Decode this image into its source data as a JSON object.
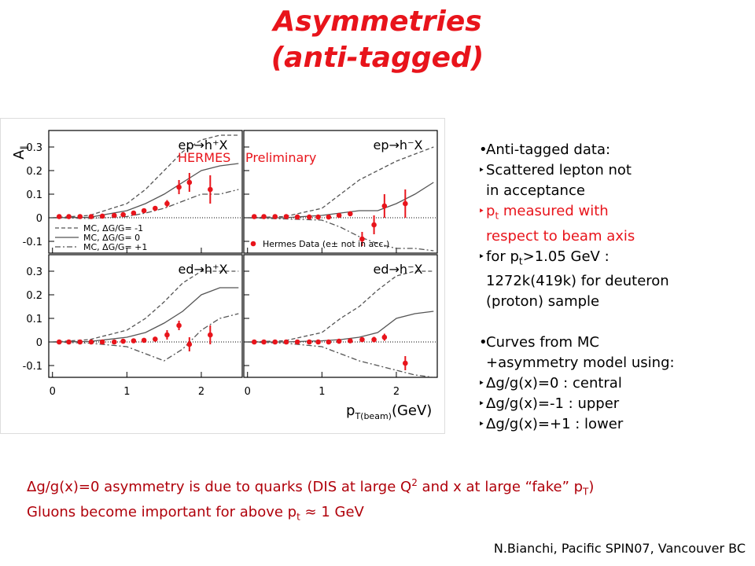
{
  "title": [
    "Asymmetries",
    "(anti-tagged)"
  ],
  "chart_data": {
    "type": "scatter",
    "ylabel": {
      "main": "A",
      "sub": "∥"
    },
    "xlabel": {
      "main": "p",
      "sub": "T(beam)",
      "unit": "(GeV)"
    },
    "xlim": [
      -0.05,
      2.55
    ],
    "ylim": [
      -0.15,
      0.37
    ],
    "xticks": [
      0,
      1,
      2
    ],
    "yticks": [
      -0.1,
      0,
      0.1,
      0.2,
      0.3
    ],
    "watermark": [
      "HERMES",
      "Preliminary"
    ],
    "point_color": "#e8141b",
    "curve_color": "#555555",
    "x": [
      0.09,
      0.22,
      0.37,
      0.52,
      0.67,
      0.83,
      0.95,
      1.09,
      1.23,
      1.38,
      1.54,
      1.7,
      1.84,
      2.12
    ],
    "curve_x": [
      0,
      0.5,
      1,
      1.25,
      1.5,
      1.75,
      2,
      2.25,
      2.5
    ],
    "curve_legend": [
      {
        "name": "MC, ΔG/G= -1",
        "dash": "5 3"
      },
      {
        "name": "MC, ΔG/G= 0",
        "dash": "none"
      },
      {
        "name": "MC, ΔG/G= +1",
        "dash": "7 3 2 3"
      }
    ],
    "data_legend": "Hermes Data (e± not in acc.)",
    "panels": [
      {
        "title": "ep→h⁺X",
        "values": [
          0.005,
          0.005,
          0.005,
          0.005,
          0.007,
          0.01,
          0.013,
          0.02,
          0.03,
          0.04,
          0.06,
          0.13,
          0.15,
          0.12
        ],
        "errors": [
          0.004,
          0.004,
          0.004,
          0.004,
          0.004,
          0.005,
          0.005,
          0.006,
          0.008,
          0.01,
          0.015,
          0.03,
          0.04,
          0.06
        ],
        "curves": [
          [
            0,
            0.01,
            0.06,
            0.12,
            0.2,
            0.28,
            0.33,
            0.35,
            0.35
          ],
          [
            0,
            0.002,
            0.03,
            0.06,
            0.1,
            0.15,
            0.2,
            0.22,
            0.23
          ],
          [
            0,
            -0.003,
            0.005,
            0.02,
            0.04,
            0.07,
            0.1,
            0.1,
            0.12
          ]
        ]
      },
      {
        "title": "ep→h⁻X",
        "values": [
          0.005,
          0.005,
          0.005,
          0.005,
          0.003,
          0.003,
          0.003,
          0.003,
          0.01,
          0.017,
          -0.09,
          -0.03,
          0.05,
          0.06
        ],
        "errors": [
          0.004,
          0.004,
          0.004,
          0.004,
          0.004,
          0.005,
          0.005,
          0.006,
          0.008,
          0.01,
          0.03,
          0.04,
          0.05,
          0.06
        ],
        "curves": [
          [
            0,
            0.005,
            0.04,
            0.1,
            0.16,
            0.2,
            0.24,
            0.27,
            0.3
          ],
          [
            0,
            0,
            0.01,
            0.02,
            0.03,
            0.03,
            0.06,
            0.1,
            0.15
          ],
          [
            0,
            -0.005,
            -0.01,
            -0.04,
            -0.08,
            -0.11,
            -0.13,
            -0.13,
            -0.14
          ]
        ]
      },
      {
        "title": "ed→h⁺X",
        "values": [
          0,
          0,
          0,
          0,
          0,
          0,
          0.003,
          0.005,
          0.007,
          0.012,
          0.03,
          0.07,
          -0.01,
          0.03
        ],
        "errors": [
          0.003,
          0.003,
          0.003,
          0.003,
          0.003,
          0.004,
          0.004,
          0.005,
          0.006,
          0.008,
          0.02,
          0.02,
          0.03,
          0.04
        ],
        "curves": [
          [
            0,
            0.01,
            0.05,
            0.1,
            0.17,
            0.25,
            0.3,
            0.3,
            0.3
          ],
          [
            0,
            0.002,
            0.02,
            0.04,
            0.08,
            0.13,
            0.2,
            0.23,
            0.23
          ],
          [
            0,
            -0.005,
            -0.02,
            -0.05,
            -0.08,
            -0.03,
            0.05,
            0.1,
            0.12
          ]
        ]
      },
      {
        "title": "ed→h⁻X",
        "values": [
          0,
          0,
          0,
          0,
          0,
          0,
          0,
          0,
          0.003,
          0.005,
          0.01,
          0.01,
          0.02,
          -0.09
        ],
        "errors": [
          0.003,
          0.003,
          0.003,
          0.003,
          0.003,
          0.004,
          0.004,
          0.005,
          0.006,
          0.008,
          0.01,
          0.012,
          0.015,
          0.03
        ],
        "curves": [
          [
            0,
            0.005,
            0.04,
            0.1,
            0.15,
            0.22,
            0.28,
            0.3,
            0.3
          ],
          [
            0,
            0,
            0.005,
            0.01,
            0.02,
            0.04,
            0.1,
            0.12,
            0.13
          ],
          [
            0,
            -0.005,
            -0.02,
            -0.05,
            -0.08,
            -0.1,
            -0.12,
            -0.14,
            -0.15
          ]
        ]
      }
    ]
  },
  "notes": [
    [
      "Anti-tagged data:"
    ],
    [
      "Scattered lepton not",
      "in acceptance"
    ],
    [
      [
        "p",
        "t",
        " measured with"
      ],
      "respect to beam axis"
    ],
    [
      [
        "for p",
        "t",
        ">1.05 GeV :"
      ],
      "1272k(419k) for deuteron",
      "(proton) sample"
    ],
    [
      "Curves from MC",
      "+asymmetry model using:"
    ],
    [
      "Δg/g(x)=0 : central"
    ],
    [
      "Δg/g(x)=-1 : upper"
    ],
    [
      "Δg/g(x)=+1 : lower"
    ]
  ],
  "summary": [
    [
      "Δg/g(x)=0 asymmetry is due to quarks (DIS at large Q",
      "2",
      " and x at large “fake” p",
      "T",
      ")"
    ],
    [
      "Gluons become important for above p",
      "t",
      " ≈ 1 GeV"
    ]
  ],
  "credit": "N.Bianchi, Pacific SPIN07, Vancouver BC"
}
